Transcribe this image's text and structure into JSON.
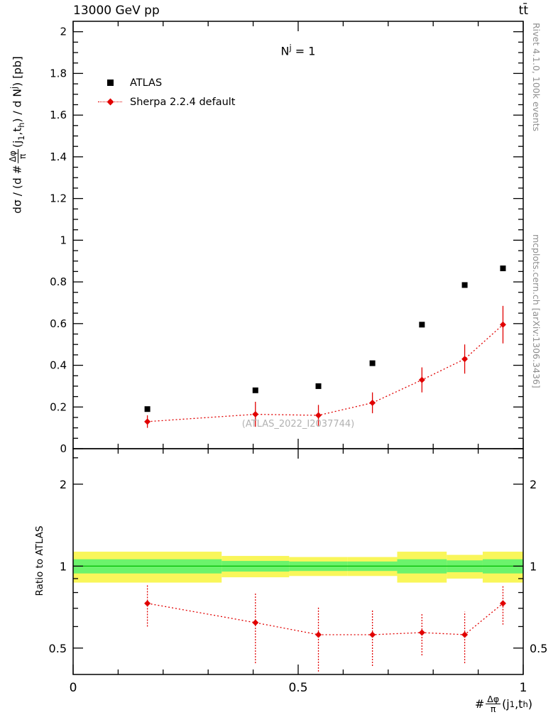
{
  "header": {
    "collision": "13000 GeV pp",
    "process": "tt̄"
  },
  "right_margin": {
    "generator_info": "Rivet 4.1.0,  100k events",
    "site_ref": "mcplots.cern.ch [arXiv:1306.3436]"
  },
  "annotation": {
    "base": "N",
    "sup": "j",
    "eq": " = 1"
  },
  "watermark": "(ATLAS_2022_I2037744)",
  "legend": {
    "atlas": "ATLAS",
    "sherpa": "Sherpa 2.2.4 default"
  },
  "labels": {
    "ylabel": {
      "pre": "dσ / (d #",
      "num": "Δφ",
      "den": "π",
      "jopen": "(j",
      "jsub": "1",
      "tpart": ",t",
      "tsub": "h",
      "close": ") / d N",
      "nsup": "j",
      "end": ") [pb]"
    },
    "xlabel": {
      "pre": "#",
      "num": "Δφ",
      "den": "π",
      "jopen": "(j",
      "jsub": "1",
      "tpart": ",t",
      "tsub": "h",
      "close": ")"
    },
    "ratio": "Ratio to ATLAS"
  },
  "colors": {
    "red": "#e10000",
    "black": "#000000",
    "band_yellow": "#f9f65a",
    "band_green": "#6cf36c",
    "green_line": "#00bb00",
    "watermark_gray": "#b2b2b2",
    "margin_gray": "#8f8f8f"
  },
  "chart_data": [
    {
      "type": "scatter",
      "panel": "main",
      "xlim": [
        0,
        1
      ],
      "ylim": [
        0,
        2.05
      ],
      "ytick_step": 0.2,
      "ytick_minor": 0.05,
      "xticks": [
        0,
        0.5,
        1
      ],
      "xtick_minor": 0.1,
      "x": [
        0.165,
        0.405,
        0.545,
        0.665,
        0.775,
        0.87,
        0.955
      ],
      "series": [
        {
          "name": "ATLAS",
          "marker": "square",
          "color": "#000000",
          "values": [
            0.19,
            0.28,
            0.3,
            0.41,
            0.595,
            0.785,
            0.865
          ]
        },
        {
          "name": "Sherpa 2.2.4 default",
          "marker": "diamond",
          "color": "#e10000",
          "linestyle": "dotted",
          "values": [
            0.13,
            0.165,
            0.16,
            0.22,
            0.33,
            0.43,
            0.595
          ],
          "yerr": [
            0.03,
            0.06,
            0.05,
            0.05,
            0.06,
            0.07,
            0.09
          ]
        }
      ]
    },
    {
      "type": "ratio",
      "panel": "ratio",
      "xlim": [
        0,
        1
      ],
      "ylog": [
        0.4,
        2.7
      ],
      "yticks": [
        0.5,
        1,
        2
      ],
      "yticks_minor": [
        0.6,
        0.7,
        0.8,
        0.9,
        2.5
      ],
      "xticks": [
        0,
        0.5,
        1
      ],
      "xtick_minor": 0.1,
      "bin_edges": [
        0,
        0.33,
        0.48,
        0.61,
        0.72,
        0.83,
        0.91,
        1
      ],
      "band_yellow": [
        0.13,
        0.09,
        0.08,
        0.08,
        0.13,
        0.1,
        0.13
      ],
      "band_green": [
        0.06,
        0.045,
        0.04,
        0.04,
        0.06,
        0.05,
        0.06
      ],
      "x": [
        0.165,
        0.405,
        0.545,
        0.665,
        0.775,
        0.87,
        0.955
      ],
      "values": [
        0.73,
        0.62,
        0.56,
        0.56,
        0.57,
        0.56,
        0.73
      ],
      "yerr": [
        0.13,
        0.18,
        0.15,
        0.13,
        0.1,
        0.12,
        0.12
      ]
    }
  ]
}
